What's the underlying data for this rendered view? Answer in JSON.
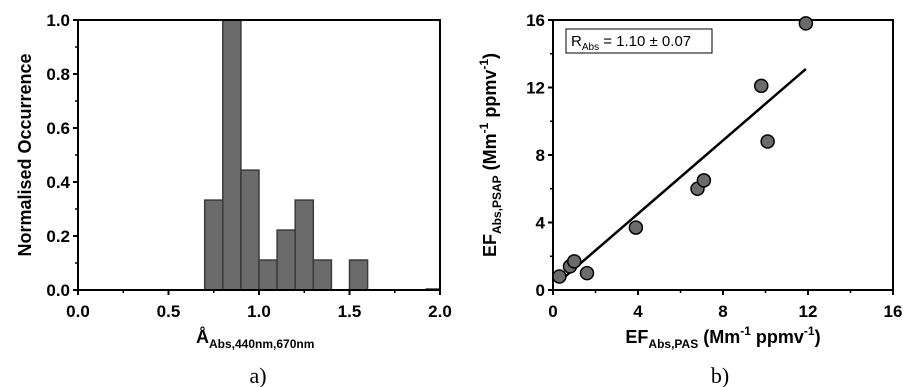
{
  "chart_data": [
    {
      "type": "bar",
      "panel_label": "a)",
      "xlabel": {
        "main": "Å",
        "sub": "Abs,440nm,670nm"
      },
      "ylabel": "Normalised Occurrence",
      "xlim": [
        0.0,
        2.0
      ],
      "ylim": [
        0.0,
        1.0
      ],
      "xticks": [
        "0.0",
        "0.5",
        "1.0",
        "1.5",
        "2.0"
      ],
      "yticks": [
        "0.0",
        "0.2",
        "0.4",
        "0.6",
        "0.8",
        "1.0"
      ],
      "bin_width": 0.1,
      "bins": [
        {
          "start": 0.7,
          "value": 0.333
        },
        {
          "start": 0.8,
          "value": 1.0
        },
        {
          "start": 0.9,
          "value": 0.444
        },
        {
          "start": 1.0,
          "value": 0.111
        },
        {
          "start": 1.1,
          "value": 0.222
        },
        {
          "start": 1.2,
          "value": 0.333
        },
        {
          "start": 1.3,
          "value": 0.111
        },
        {
          "start": 1.5,
          "value": 0.111
        }
      ],
      "bar_color": "#6b6b6b",
      "grid": false
    },
    {
      "type": "scatter",
      "panel_label": "b)",
      "xlabel": {
        "main": "EF",
        "sub": "Abs,PAS",
        "rest_pre": " (Mm",
        "sup1": "-1",
        "rest_mid": " ppmv",
        "sup2": "-1",
        "rest_post": ")"
      },
      "ylabel": {
        "main": "EF",
        "sub": "Abs,PSAP",
        "rest_pre": " (Mm",
        "sup1": "-1",
        "rest_mid": " ppmv",
        "sup2": "-1",
        "rest_post": ")"
      },
      "xlim": [
        0,
        16
      ],
      "ylim": [
        0,
        16
      ],
      "xticks": [
        "0",
        "4",
        "8",
        "12",
        "16"
      ],
      "yticks": [
        "0",
        "4",
        "8",
        "12",
        "16"
      ],
      "points": [
        {
          "x": 0.3,
          "y": 0.8
        },
        {
          "x": 0.8,
          "y": 1.4
        },
        {
          "x": 1.0,
          "y": 1.7
        },
        {
          "x": 1.6,
          "y": 1.0
        },
        {
          "x": 3.9,
          "y": 3.7
        },
        {
          "x": 6.8,
          "y": 6.0
        },
        {
          "x": 7.1,
          "y": 6.5
        },
        {
          "x": 9.8,
          "y": 12.1
        },
        {
          "x": 10.1,
          "y": 8.8
        },
        {
          "x": 11.9,
          "y": 15.8
        }
      ],
      "fit_line": {
        "x": [
          0.3,
          11.9
        ],
        "y": [
          0.5,
          13.1
        ]
      },
      "annotation": {
        "main": "R",
        "sub": "Abs",
        "rest": " = 1.10 ± 0.07"
      },
      "marker_color": "#6b6b6b",
      "grid": false
    }
  ]
}
